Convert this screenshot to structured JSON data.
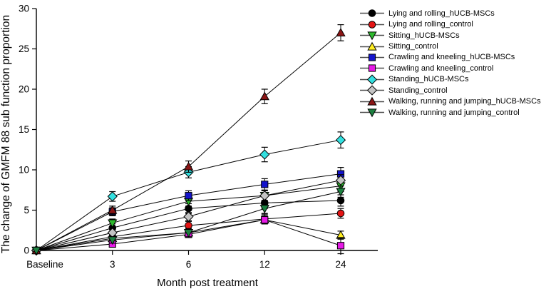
{
  "chart_data": {
    "type": "line",
    "title": "",
    "xlabel": "Month post treatment",
    "ylabel": "The change of GMFM 88 sub function proportion",
    "categories": [
      "Baseline",
      "3",
      "6",
      "12",
      "24"
    ],
    "yticks": [
      0,
      5,
      10,
      15,
      20,
      25,
      30
    ],
    "ylim": [
      0,
      30
    ],
    "grid": false,
    "legend_position": "right",
    "line_color": "#000000",
    "error_bars": true,
    "series": [
      {
        "name": "Lying and rolling_hUCB-MSCs",
        "marker": "circle",
        "color": "#000000",
        "values": [
          0,
          2.8,
          5.2,
          5.9,
          6.2
        ],
        "errors": [
          0,
          0.5,
          0.6,
          0.7,
          0.7
        ]
      },
      {
        "name": "Lying and rolling_control",
        "marker": "circle",
        "color": "#e31414",
        "values": [
          0,
          1.7,
          3.1,
          3.9,
          4.6
        ],
        "errors": [
          0,
          0.4,
          0.5,
          0.6,
          0.6
        ]
      },
      {
        "name": "Sitting_hUCB-MSCs",
        "marker": "triangle-down",
        "color": "#2db92d",
        "values": [
          0,
          3.4,
          6.1,
          6.8,
          8.0
        ],
        "errors": [
          0,
          0.5,
          0.6,
          0.6,
          0.7
        ]
      },
      {
        "name": "Sitting_control",
        "marker": "triangle-up",
        "color": "#ffee22",
        "values": [
          0,
          1.5,
          2.2,
          3.8,
          1.9
        ],
        "errors": [
          0,
          0.4,
          0.5,
          0.5,
          0.5
        ]
      },
      {
        "name": "Crawling and kneeling_hUCB-MSCs",
        "marker": "square",
        "color": "#1414cc",
        "values": [
          0,
          4.8,
          6.8,
          8.2,
          9.5
        ],
        "errors": [
          0,
          0.5,
          0.6,
          0.7,
          0.8
        ]
      },
      {
        "name": "Crawling and kneeling_control",
        "marker": "square",
        "color": "#e619e6",
        "values": [
          0,
          0.8,
          2.0,
          3.8,
          0.6
        ],
        "errors": [
          0,
          0.4,
          0.4,
          0.5,
          1.0
        ]
      },
      {
        "name": "Standing_hUCB-MSCs",
        "marker": "diamond",
        "color": "#33e0e0",
        "values": [
          0,
          6.7,
          9.7,
          11.9,
          13.7
        ],
        "errors": [
          0,
          0.6,
          0.7,
          0.9,
          1.0
        ]
      },
      {
        "name": "Standing_control",
        "marker": "diamond",
        "color": "#c4c4c4",
        "values": [
          0,
          2.2,
          4.2,
          6.8,
          8.7
        ],
        "errors": [
          0,
          0.4,
          0.5,
          0.6,
          0.7
        ]
      },
      {
        "name": "Walking, running and jumping_hUCB-MSCs",
        "marker": "triangle-up",
        "color": "#8b1515",
        "values": [
          0,
          5.0,
          10.4,
          19.1,
          27.0
        ],
        "errors": [
          0,
          0.5,
          0.7,
          0.9,
          1.0
        ]
      },
      {
        "name": "Walking, running and jumping_control",
        "marker": "triangle-down",
        "color": "#1d8040",
        "values": [
          0,
          1.3,
          2.2,
          5.2,
          7.3
        ],
        "errors": [
          0,
          0.4,
          0.5,
          0.6,
          0.7
        ]
      }
    ]
  }
}
